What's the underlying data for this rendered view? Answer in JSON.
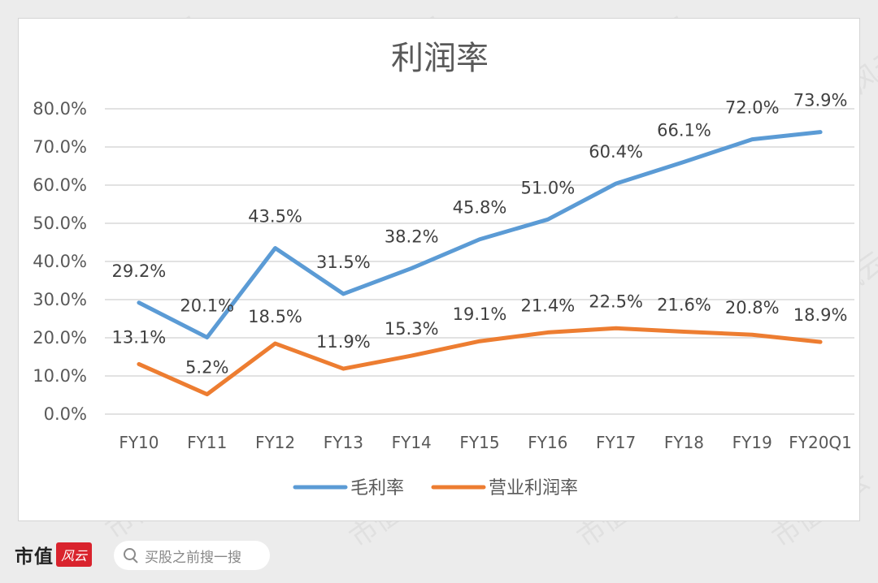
{
  "chart_data": {
    "type": "line",
    "title": "利润率",
    "categories": [
      "FY10",
      "FY11",
      "FY12",
      "FY13",
      "FY14",
      "FY15",
      "FY16",
      "FY17",
      "FY18",
      "FY19",
      "FY20Q1"
    ],
    "ylim": [
      0,
      80
    ],
    "yticks": [
      "80.0%",
      "70.0%",
      "60.0%",
      "50.0%",
      "40.0%",
      "30.0%",
      "20.0%",
      "10.0%",
      "0.0%"
    ],
    "grid": true,
    "legend_position": "bottom",
    "series": [
      {
        "name": "毛利率",
        "color": "#5b9bd5",
        "values": [
          29.2,
          20.1,
          43.5,
          31.5,
          38.2,
          45.8,
          51.0,
          60.4,
          66.1,
          72.0,
          73.9
        ],
        "labels": [
          "29.2%",
          "20.1%",
          "43.5%",
          "31.5%",
          "38.2%",
          "45.8%",
          "51.0%",
          "60.4%",
          "66.1%",
          "72.0%",
          "73.9%"
        ]
      },
      {
        "name": "营业利润率",
        "color": "#ed7d31",
        "values": [
          13.1,
          5.2,
          18.5,
          11.9,
          15.3,
          19.1,
          21.4,
          22.5,
          21.6,
          20.8,
          18.9
        ],
        "labels": [
          "13.1%",
          "5.2%",
          "18.5%",
          "11.9%",
          "15.3%",
          "19.1%",
          "21.4%",
          "22.5%",
          "21.6%",
          "20.8%",
          "18.9%"
        ]
      }
    ]
  },
  "footer": {
    "brand": "市值",
    "brand_badge": "风云",
    "search_placeholder": "买股之前搜一搜",
    "search_icon": "search-icon"
  },
  "watermark": "市值风云"
}
